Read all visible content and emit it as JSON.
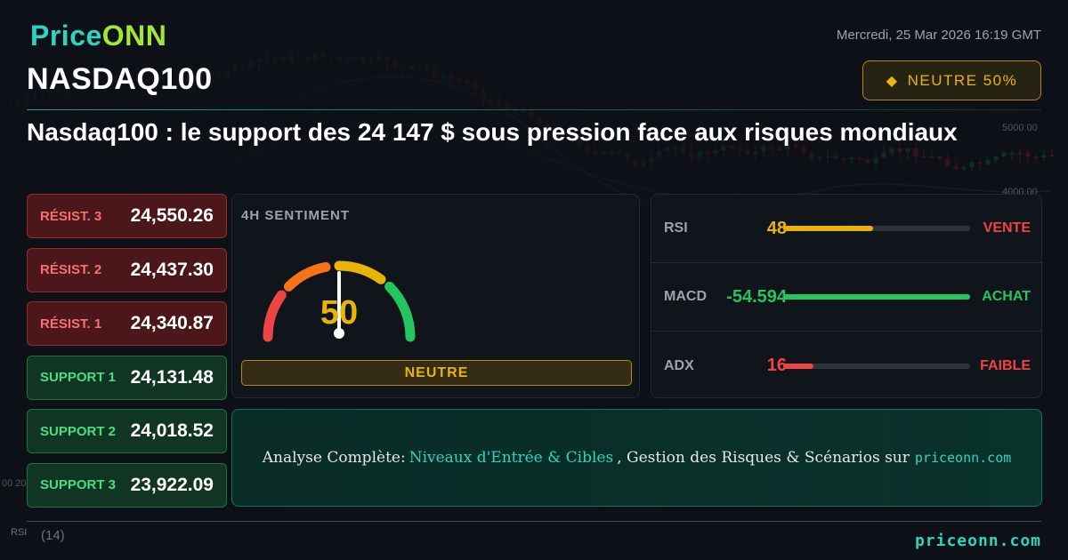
{
  "brand": {
    "logo_part1": "Price",
    "logo_part2": "ONN"
  },
  "header": {
    "datetime": "Mercredi, 25 Mar 2026 16:19 GMT",
    "symbol": "NASDAQ100",
    "badge_text": "NEUTRE 50%"
  },
  "headline": "Nasdaq100 : le support des 24 147 $ sous pression face aux risques mondiaux",
  "levels": [
    {
      "label": "RÉSIST. 3",
      "value": "24,550.26",
      "type": "resistance"
    },
    {
      "label": "RÉSIST. 2",
      "value": "24,437.30",
      "type": "resistance"
    },
    {
      "label": "RÉSIST. 1",
      "value": "24,340.87",
      "type": "resistance"
    },
    {
      "label": "SUPPORT 1",
      "value": "24,131.48",
      "type": "support"
    },
    {
      "label": "SUPPORT 2",
      "value": "24,018.52",
      "type": "support"
    },
    {
      "label": "SUPPORT 3",
      "value": "23,922.09",
      "type": "support"
    }
  ],
  "sentiment": {
    "title": "4H SENTIMENT",
    "value": "50",
    "label": "NEUTRE",
    "level": 0.5
  },
  "indicators": [
    {
      "name": "RSI",
      "value": "48",
      "signal": "VENTE",
      "fill": 0.48,
      "value_color": "#eab308",
      "bar_color": "#eab308",
      "signal_color": "#ef4444"
    },
    {
      "name": "MACD",
      "value": "-54.594",
      "signal": "ACHAT",
      "fill": 1.0,
      "value_color": "#22c55e",
      "bar_color": "#22c55e",
      "signal_color": "#22c55e"
    },
    {
      "name": "ADX",
      "value": "16",
      "signal": "FAIBLE",
      "fill": 0.16,
      "value_color": "#ef4444",
      "bar_color": "#ef4444",
      "signal_color": "#ef4444"
    }
  ],
  "cta": {
    "prefix": "Analyse Complète:",
    "highlight": "Niveaux d'Entrée & Cibles",
    "middle": ", Gestion des Risques & Scénarios sur",
    "site": "priceonn.com"
  },
  "footer": {
    "site": "priceonn.com"
  },
  "background_chart": {
    "axis_labels": [
      "5000.00",
      "4000.00",
      "00 20"
    ],
    "rsi_label": "RSI",
    "rsi_value": "(14)"
  },
  "colors": {
    "accent": "#2dd4bf",
    "neutral": "#eab308",
    "bullish": "#22c55e",
    "bearish": "#ef4444"
  }
}
